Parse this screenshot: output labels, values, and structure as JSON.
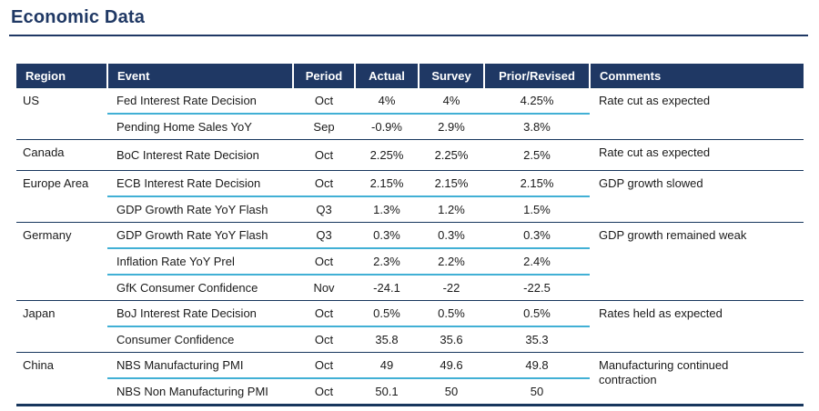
{
  "page": {
    "title": "Economic Data"
  },
  "colors": {
    "header_bg": "#1f3864",
    "title": "#1f3864",
    "region_divider": "#17365d",
    "event_divider_accent": "#41b0d5",
    "header_text": "#ffffff",
    "body_text": "#1a1a1a"
  },
  "table": {
    "columns": [
      "Region",
      "Event",
      "Period",
      "Actual",
      "Survey",
      "Prior/Revised",
      "Comments"
    ],
    "regions": [
      {
        "region": "US",
        "comment": "Rate cut as expected",
        "rows": [
          {
            "event": "Fed Interest Rate Decision",
            "period": "Oct",
            "actual": "4%",
            "survey": "4%",
            "prior": "4.25%"
          },
          {
            "event": "Pending Home Sales YoY",
            "period": "Sep",
            "actual": "-0.9%",
            "survey": "2.9%",
            "prior": "3.8%"
          }
        ]
      },
      {
        "region": "Canada",
        "comment": "Rate cut as expected",
        "rows": [
          {
            "event": "BoC Interest Rate Decision",
            "period": "Oct",
            "actual": "2.25%",
            "survey": "2.25%",
            "prior": "2.5%"
          }
        ]
      },
      {
        "region": "Europe Area",
        "comment": "GDP growth slowed",
        "rows": [
          {
            "event": "ECB Interest Rate Decision",
            "period": "Oct",
            "actual": "2.15%",
            "survey": "2.15%",
            "prior": "2.15%"
          },
          {
            "event": "GDP Growth Rate YoY Flash",
            "period": "Q3",
            "actual": "1.3%",
            "survey": "1.2%",
            "prior": "1.5%"
          }
        ]
      },
      {
        "region": "Germany",
        "comment": "GDP growth remained weak",
        "rows": [
          {
            "event": "GDP Growth Rate YoY Flash",
            "period": "Q3",
            "actual": "0.3%",
            "survey": "0.3%",
            "prior": "0.3%"
          },
          {
            "event": "Inflation Rate YoY Prel",
            "period": "Oct",
            "actual": "2.3%",
            "survey": "2.2%",
            "prior": "2.4%"
          },
          {
            "event": "GfK Consumer Confidence",
            "period": "Nov",
            "actual": "-24.1",
            "survey": "-22",
            "prior": "-22.5"
          }
        ]
      },
      {
        "region": "Japan",
        "comment": "Rates held as expected",
        "rows": [
          {
            "event": "BoJ Interest Rate Decision",
            "period": "Oct",
            "actual": "0.5%",
            "survey": "0.5%",
            "prior": "0.5%"
          },
          {
            "event": "Consumer Confidence",
            "period": "Oct",
            "actual": "35.8",
            "survey": "35.6",
            "prior": "35.3"
          }
        ]
      },
      {
        "region": "China",
        "comment": "Manufacturing continued contraction",
        "rows": [
          {
            "event": "NBS Manufacturing PMI",
            "period": "Oct",
            "actual": "49",
            "survey": "49.6",
            "prior": "49.8"
          },
          {
            "event": "NBS Non Manufacturing PMI",
            "period": "Oct",
            "actual": "50.1",
            "survey": "50",
            "prior": "50"
          }
        ]
      }
    ]
  }
}
